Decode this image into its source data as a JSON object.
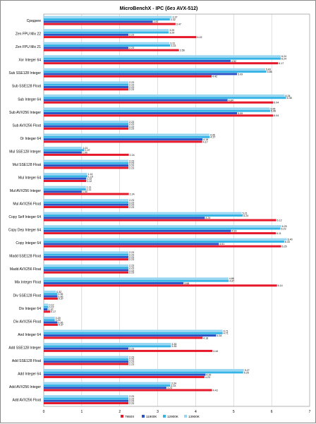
{
  "chart_data": {
    "type": "bar",
    "orientation": "horizontal",
    "title": "MicroBenchX - IPC (без AVX-512)",
    "xlim": [
      0,
      7
    ],
    "xticks": [
      0,
      1,
      2,
      3,
      4,
      5,
      6,
      7
    ],
    "grid": "vertical",
    "legend_position": "bottom",
    "categories": [
      "Среднее",
      "Zen FPU Mix 22",
      "Zen FPU Mix 21",
      "Xor Integer 64",
      "Sub SSE128 Integer",
      "Sub SSE128 Float",
      "Sub Integer 64",
      "Sub AVX256 Integer",
      "Sub AVX256 Float",
      "Or Integer 64",
      "Mul SSE128 Integer",
      "Mul SSE128 Float",
      "Mul Integer 64",
      "Mul AVX256 Integer",
      "Mul AVX256 Float",
      "Copy Self Integer 64",
      "Copy Dep Integer 64",
      "Copy Integer 64",
      "Madd SSE128 Float",
      "Madd AVX256 Float",
      "Mix Integer Float",
      "Div SSE128 Float",
      "Div Integer 64",
      "Div AVX256 Float",
      "And Integer 64",
      "Add SSE128 Integer",
      "Add SSE128 Float",
      "Add Integer 64",
      "Add AVX256 Integer",
      "Add AVX256 Float"
    ],
    "series": [
      {
        "name": "13900K",
        "color": "#99d6f2",
        "values": [
          3.37,
          3.29,
          3.31,
          6.24,
          5.83,
          2.23,
          6.34,
          5.95,
          2.23,
          4.36,
          1.01,
          2.23,
          1.14,
          1.11,
          2.23,
          5.21,
          6.25,
          6.4,
          2.23,
          2.23,
          4.86,
          0.32,
          0.12,
          0.29,
          4.71,
          3.35,
          2.23,
          5.27,
          3.34,
          2.23
        ]
      },
      {
        "name": "12900K",
        "color": "#36b4e6",
        "values": [
          3.32,
          3.29,
          3.33,
          6.24,
          5.86,
          2.23,
          6.38,
          5.96,
          2.23,
          4.37,
          1.07,
          2.23,
          1.15,
          1.11,
          2.23,
          5.24,
          6.23,
          6.33,
          2.23,
          2.23,
          4.87,
          0.36,
          0.12,
          0.29,
          4.71,
          3.35,
          2.23,
          5.25,
          3.33,
          2.23
        ]
      },
      {
        "name": "11900K",
        "color": "#2b54c6",
        "values": [
          2.87,
          2.23,
          2.23,
          4.92,
          5.09,
          2.23,
          4.84,
          5.09,
          2.23,
          4.18,
          1.0,
          2.23,
          1.12,
          1.0,
          2.23,
          4.24,
          4.93,
          4.61,
          2.23,
          2.23,
          3.68,
          0.36,
          0.1,
          0.36,
          4.54,
          2.23,
          2.23,
          4.26,
          3.23,
          2.23
        ]
      },
      {
        "name": "7950X",
        "color": "#e6192b",
        "values": [
          3.47,
          4.02,
          3.56,
          6.17,
          4.42,
          2.23,
          6.04,
          6.04,
          2.23,
          4.17,
          2.24,
          2.23,
          1.12,
          2.24,
          2.23,
          6.12,
          6.11,
          6.25,
          2.23,
          2.23,
          6.14,
          0.37,
          0.17,
          0.37,
          4.18,
          4.44,
          2.23,
          4.23,
          4.43,
          2.23
        ]
      }
    ]
  }
}
